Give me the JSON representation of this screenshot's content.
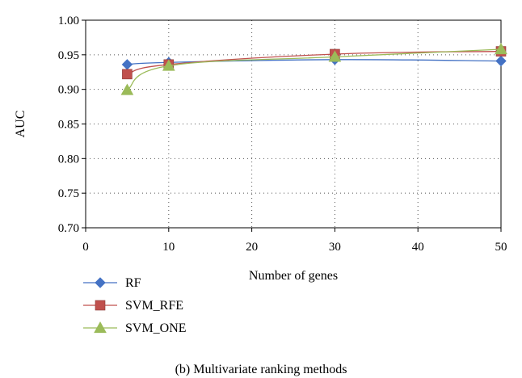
{
  "chart_data": {
    "type": "line",
    "xlabel": "Number of genes",
    "ylabel": "AUC",
    "xlim": [
      0,
      50
    ],
    "ylim": [
      0.7,
      1.0
    ],
    "x_ticks": [
      0,
      10,
      20,
      30,
      40,
      50
    ],
    "x_tick_labels": [
      "0",
      "10",
      "20",
      "30",
      "40",
      "50"
    ],
    "y_ticks": [
      0.7,
      0.75,
      0.8,
      0.85,
      0.9,
      0.95,
      1.0
    ],
    "y_tick_labels": [
      "0.70",
      "0.75",
      "0.80",
      "0.85",
      "0.90",
      "0.95",
      "1.00"
    ],
    "grid": "dotted",
    "legend_position": "bottom-left",
    "smooth": true,
    "x": [
      5,
      10,
      30,
      50
    ],
    "series": [
      {
        "name": "RF",
        "marker": "diamond",
        "color": "#4472C4",
        "values": [
          0.936,
          0.939,
          0.943,
          0.941
        ]
      },
      {
        "name": "SVM_RFE",
        "marker": "square",
        "color": "#C0504D",
        "values": [
          0.922,
          0.936,
          0.951,
          0.955
        ]
      },
      {
        "name": "SVM_ONE",
        "marker": "triangle",
        "color": "#9BBB59",
        "values": [
          0.899,
          0.934,
          0.947,
          0.958
        ]
      }
    ],
    "caption": "(b) Multivariate ranking methods"
  }
}
